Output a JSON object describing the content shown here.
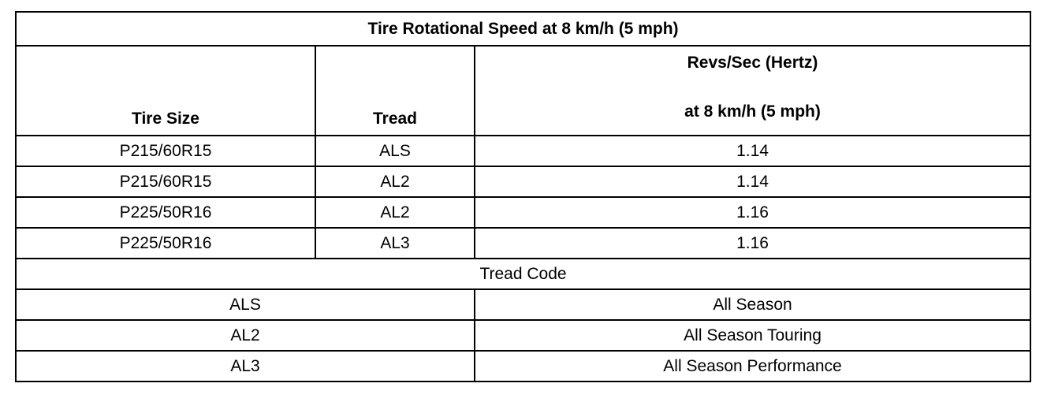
{
  "table": {
    "title": "Tire Rotational Speed at 8 km/h (5 mph)",
    "headers": {
      "tire_size": "Tire Size",
      "tread": "Tread",
      "revs_line1": "Revs/Sec (Hertz)",
      "revs_line2": "at 8 km/h (5 mph)"
    },
    "rows": [
      {
        "tire_size": "P215/60R15",
        "tread": "ALS",
        "revs": "1.14"
      },
      {
        "tire_size": "P215/60R15",
        "tread": "AL2",
        "revs": "1.14"
      },
      {
        "tire_size": "P225/50R16",
        "tread": "AL2",
        "revs": "1.16"
      },
      {
        "tire_size": "P225/50R16",
        "tread": "AL3",
        "revs": "1.16"
      }
    ],
    "tread_code_title": "Tread Code",
    "tread_codes": [
      {
        "code": "ALS",
        "description": "All Season"
      },
      {
        "code": "AL2",
        "description": "All Season Touring"
      },
      {
        "code": "AL3",
        "description": "All Season Performance"
      }
    ]
  }
}
